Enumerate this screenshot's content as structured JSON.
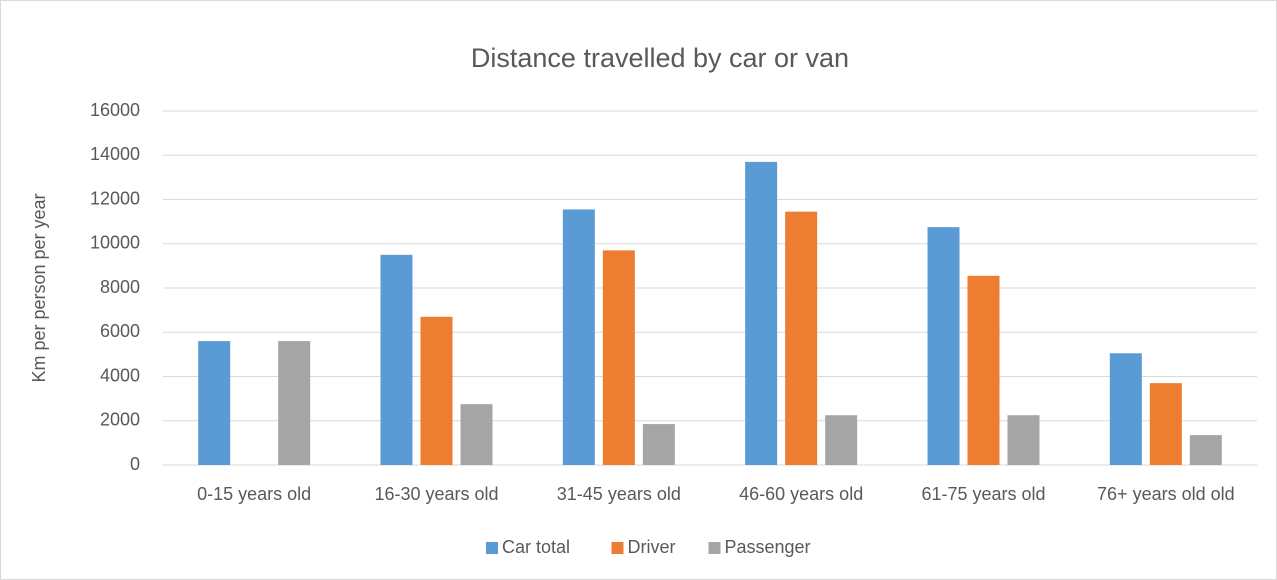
{
  "chart_data": {
    "type": "bar",
    "title": "Distance travelled by car or van",
    "y_label": "Km per person per year",
    "categories": [
      "0-15 years old",
      "16-30 years old",
      "31-45 years old",
      "46-60 years old",
      "61-75 years old",
      "76+ years old old"
    ],
    "series": [
      {
        "name": "Car total",
        "color": "#5b9bd5",
        "values": [
          5600,
          9500,
          11550,
          13700,
          10750,
          5050
        ]
      },
      {
        "name": "Driver",
        "color": "#ed7d31",
        "values": [
          null,
          6700,
          9700,
          11450,
          8550,
          3700
        ]
      },
      {
        "name": "Passenger",
        "color": "#a5a5a5",
        "values": [
          5600,
          2750,
          1850,
          2250,
          2250,
          1350
        ]
      }
    ],
    "ylim": [
      0,
      16000
    ],
    "yticks": [
      0,
      2000,
      4000,
      6000,
      8000,
      10000,
      12000,
      14000,
      16000
    ],
    "grid": true,
    "legend": "bottom"
  }
}
